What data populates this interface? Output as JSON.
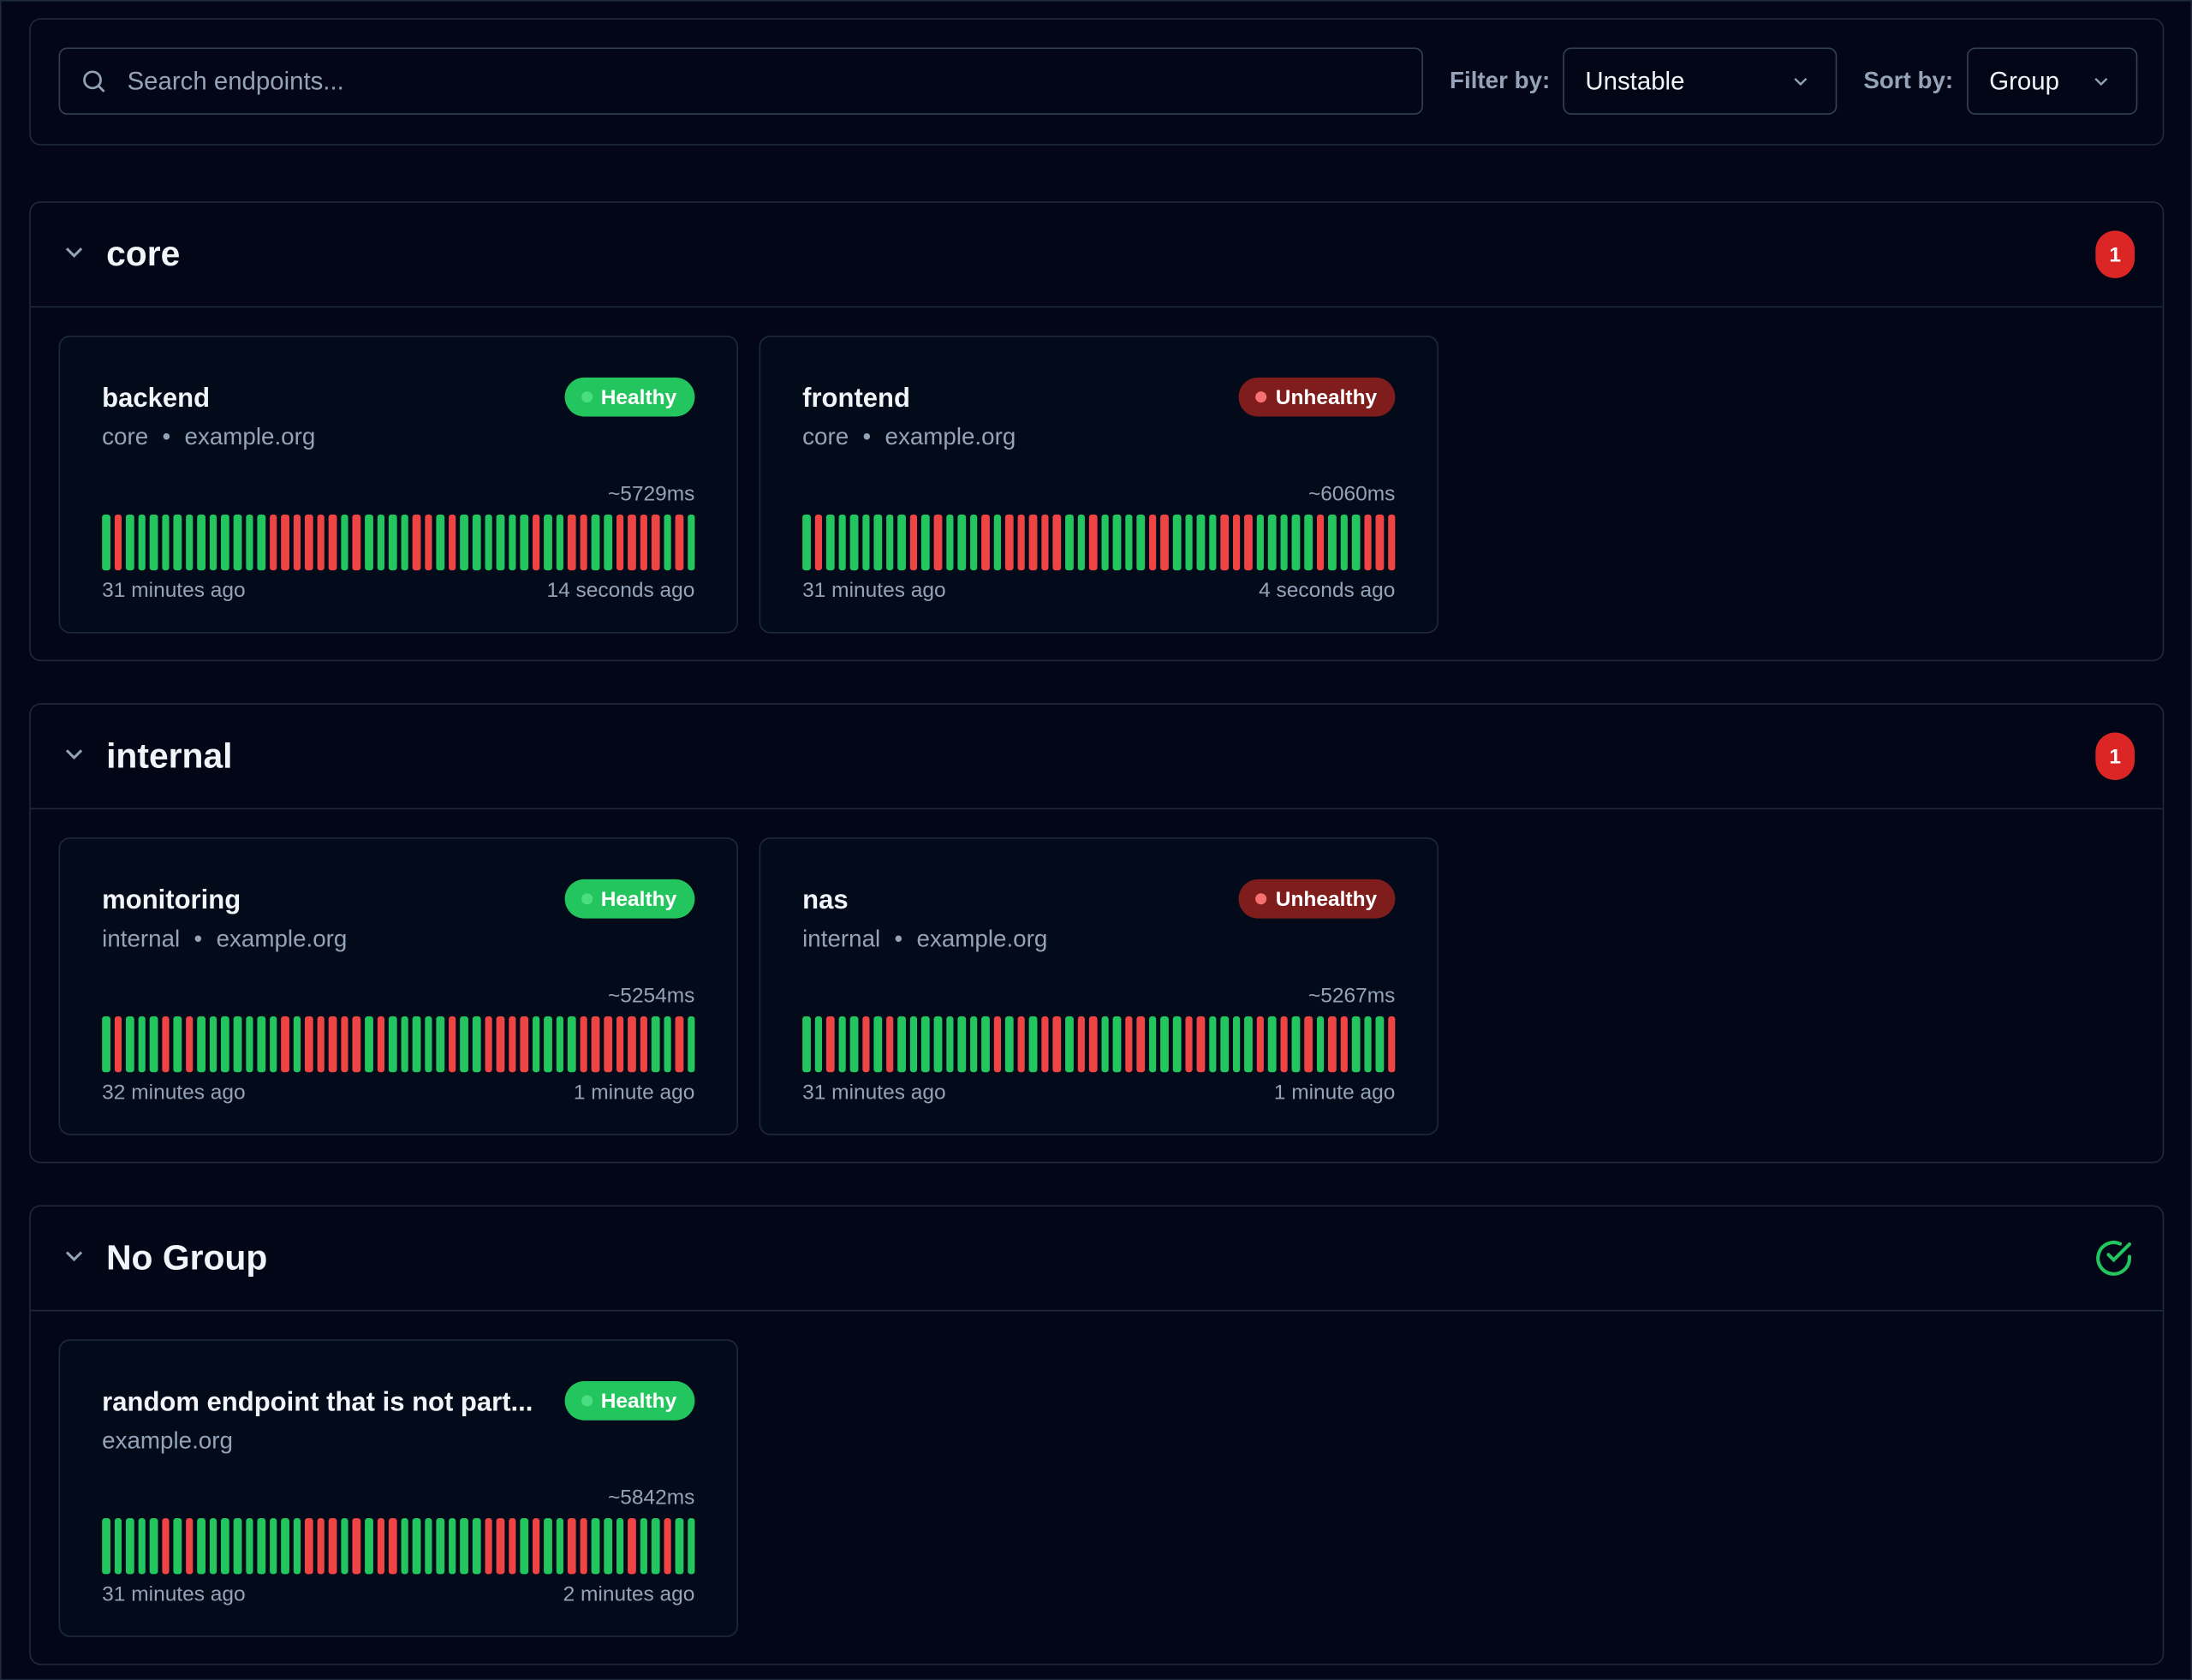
{
  "toolbar": {
    "search_placeholder": "Search endpoints...",
    "filter_label": "Filter by:",
    "filter_value": "Unstable",
    "sort_label": "Sort by:",
    "sort_value": "Group"
  },
  "colors": {
    "success": "#22c55e",
    "failure": "#ef4444"
  },
  "groups": [
    {
      "name": "core",
      "badge": 1,
      "endpoints": [
        {
          "name": "backend",
          "status": "Healthy",
          "status_color": "#22c55e",
          "status_dot": "#4ade80",
          "group": "core",
          "host": "example.org",
          "response_time": "~5729ms",
          "oldest": "31 minutes ago",
          "newest": "14 seconds ago",
          "results": [
            1,
            0,
            1,
            1,
            1,
            1,
            1,
            1,
            1,
            1,
            1,
            1,
            1,
            1,
            0,
            0,
            0,
            0,
            0,
            0,
            1,
            0,
            1,
            1,
            1,
            1,
            0,
            0,
            1,
            0,
            1,
            1,
            1,
            1,
            1,
            1,
            0,
            1,
            1,
            0,
            0,
            1,
            1,
            0,
            0,
            0,
            0,
            1,
            0,
            1
          ]
        },
        {
          "name": "frontend",
          "status": "Unhealthy",
          "status_color": "#7f1d1d",
          "status_dot": "#f87171",
          "group": "core",
          "host": "example.org",
          "response_time": "~6060ms",
          "oldest": "31 minutes ago",
          "newest": "4 seconds ago",
          "results": [
            1,
            0,
            1,
            1,
            1,
            1,
            1,
            1,
            1,
            0,
            1,
            0,
            1,
            1,
            1,
            0,
            1,
            0,
            0,
            0,
            0,
            0,
            1,
            1,
            0,
            1,
            1,
            1,
            1,
            0,
            0,
            1,
            1,
            1,
            1,
            0,
            0,
            0,
            1,
            1,
            1,
            1,
            1,
            0,
            1,
            1,
            1,
            0,
            0,
            0
          ]
        }
      ]
    },
    {
      "name": "internal",
      "badge": 1,
      "endpoints": [
        {
          "name": "monitoring",
          "status": "Healthy",
          "status_color": "#22c55e",
          "status_dot": "#4ade80",
          "group": "internal",
          "host": "example.org",
          "response_time": "~5254ms",
          "oldest": "32 minutes ago",
          "newest": "1 minute ago",
          "results": [
            1,
            0,
            1,
            1,
            1,
            0,
            1,
            0,
            1,
            1,
            1,
            1,
            1,
            1,
            1,
            0,
            1,
            0,
            0,
            0,
            0,
            0,
            1,
            0,
            1,
            1,
            1,
            1,
            1,
            0,
            1,
            1,
            0,
            0,
            0,
            0,
            1,
            1,
            1,
            1,
            0,
            0,
            0,
            0,
            0,
            0,
            1,
            1,
            0,
            1
          ]
        },
        {
          "name": "nas",
          "status": "Unhealthy",
          "status_color": "#7f1d1d",
          "status_dot": "#f87171",
          "group": "internal",
          "host": "example.org",
          "response_time": "~5267ms",
          "oldest": "31 minutes ago",
          "newest": "1 minute ago",
          "results": [
            1,
            1,
            0,
            1,
            1,
            0,
            1,
            0,
            1,
            1,
            1,
            1,
            1,
            1,
            1,
            1,
            0,
            1,
            0,
            1,
            0,
            0,
            1,
            0,
            0,
            1,
            1,
            0,
            0,
            1,
            1,
            1,
            0,
            0,
            1,
            1,
            1,
            1,
            0,
            1,
            0,
            1,
            0,
            1,
            0,
            0,
            1,
            1,
            1,
            0
          ]
        }
      ]
    },
    {
      "name": "No Group",
      "endpoints": [
        {
          "name": "random endpoint that is not part...",
          "status": "Healthy",
          "status_color": "#22c55e",
          "status_dot": "#4ade80",
          "host": "example.org",
          "response_time": "~5842ms",
          "oldest": "31 minutes ago",
          "newest": "2 minutes ago",
          "results": [
            1,
            1,
            1,
            1,
            1,
            0,
            1,
            0,
            1,
            1,
            1,
            1,
            1,
            1,
            1,
            1,
            1,
            0,
            0,
            0,
            1,
            0,
            1,
            0,
            0,
            1,
            1,
            1,
            1,
            1,
            1,
            1,
            0,
            0,
            0,
            1,
            0,
            1,
            1,
            0,
            0,
            1,
            1,
            1,
            0,
            1,
            1,
            0,
            1,
            1
          ]
        }
      ]
    }
  ]
}
